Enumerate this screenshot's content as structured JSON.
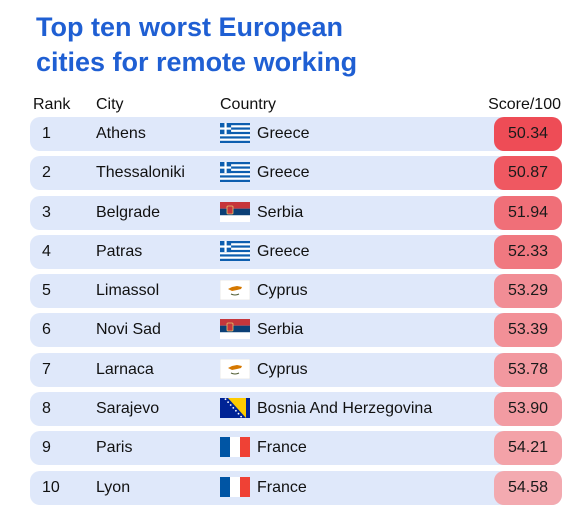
{
  "title_lines": [
    "Top ten worst European",
    "cities for remote working"
  ],
  "headers": {
    "rank": "Rank",
    "city": "City",
    "country": "Country",
    "score": "Score/100"
  },
  "colors": {
    "title": "#1f5fd3",
    "row_bg": "#dfe8fa",
    "score_scale": [
      "#ee4c56",
      "#f3aab0"
    ]
  },
  "chart_data": {
    "type": "table",
    "columns": [
      "Rank",
      "City",
      "Country",
      "Score/100"
    ],
    "rows": [
      {
        "rank": "1",
        "city": "Athens",
        "country": "Greece",
        "flag": "greece-flag",
        "score": "50.34"
      },
      {
        "rank": "2",
        "city": "Thessaloniki",
        "country": "Greece",
        "flag": "greece-flag",
        "score": "50.87"
      },
      {
        "rank": "3",
        "city": "Belgrade",
        "country": "Serbia",
        "flag": "serbia-flag",
        "score": "51.94"
      },
      {
        "rank": "4",
        "city": "Patras",
        "country": "Greece",
        "flag": "greece-flag",
        "score": "52.33"
      },
      {
        "rank": "5",
        "city": "Limassol",
        "country": "Cyprus",
        "flag": "cyprus-flag",
        "score": "53.29"
      },
      {
        "rank": "6",
        "city": "Novi Sad",
        "country": "Serbia",
        "flag": "serbia-flag",
        "score": "53.39"
      },
      {
        "rank": "7",
        "city": "Larnaca",
        "country": "Cyprus",
        "flag": "cyprus-flag",
        "score": "53.78"
      },
      {
        "rank": "8",
        "city": "Sarajevo",
        "country": "Bosnia And Herzegovina",
        "flag": "bosnia-flag",
        "score": "53.90"
      },
      {
        "rank": "9",
        "city": "Paris",
        "country": "France",
        "flag": "france-flag",
        "score": "54.21"
      },
      {
        "rank": "10",
        "city": "Lyon",
        "country": "France",
        "flag": "france-flag",
        "score": "54.58"
      }
    ]
  }
}
